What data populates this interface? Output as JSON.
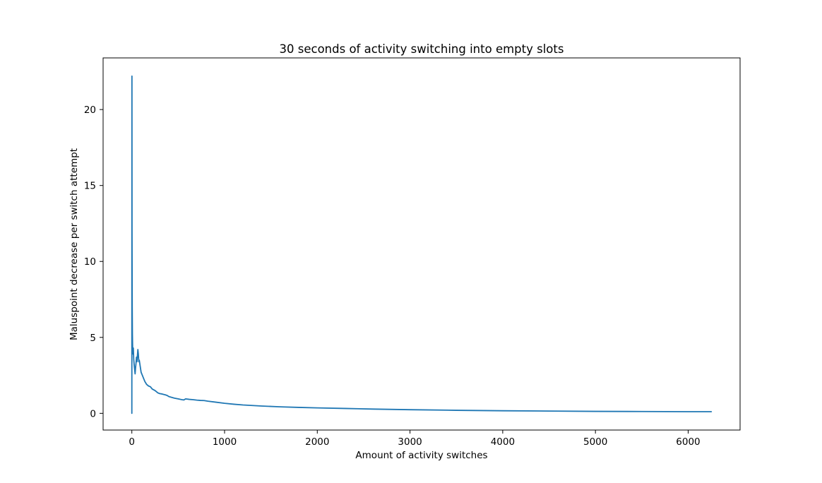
{
  "chart_data": {
    "type": "line",
    "title": "30 seconds of activity switching into empty slots",
    "xlabel": "Amount of activity switches",
    "ylabel": "Maluspoint decrease per switch attempt",
    "xlim": [
      -310,
      6560
    ],
    "ylim": [
      -1.1,
      23.4
    ],
    "xticks": [
      0,
      1000,
      2000,
      3000,
      4000,
      5000,
      6000
    ],
    "xtick_labels": [
      "0",
      "1000",
      "2000",
      "3000",
      "4000",
      "5000",
      "6000"
    ],
    "yticks": [
      0,
      5,
      10,
      15,
      20
    ],
    "ytick_labels": [
      "0",
      "5",
      "10",
      "15",
      "20"
    ],
    "grid": false,
    "colors": {
      "series": "#1f77b4"
    },
    "series": [
      {
        "x": [
          0,
          1,
          2,
          4,
          6,
          8,
          10,
          13,
          16,
          20,
          25,
          30,
          35,
          40,
          45,
          50,
          55,
          60,
          65,
          70,
          75,
          80,
          90,
          100,
          120,
          140,
          160,
          180,
          200,
          220,
          250,
          280,
          300,
          320,
          340,
          360,
          380,
          400,
          430,
          460,
          500,
          540,
          560,
          580,
          620,
          660,
          700,
          740,
          780,
          820,
          900,
          1000,
          1100,
          1200,
          1400,
          1600,
          1800,
          2000,
          2300,
          2600,
          3000,
          3500,
          4000,
          4500,
          5000,
          5500,
          6000,
          6250
        ],
        "y": [
          0,
          22.2,
          12,
          7,
          5.2,
          4.5,
          4.0,
          3.9,
          4.3,
          3.6,
          3.2,
          2.9,
          2.6,
          3.0,
          3.3,
          3.7,
          3.4,
          3.8,
          4.2,
          3.9,
          3.4,
          3.5,
          3.1,
          2.7,
          2.4,
          2.1,
          1.9,
          1.8,
          1.75,
          1.6,
          1.5,
          1.35,
          1.3,
          1.28,
          1.25,
          1.22,
          1.18,
          1.1,
          1.05,
          1.0,
          0.95,
          0.9,
          0.88,
          0.95,
          0.92,
          0.9,
          0.87,
          0.85,
          0.84,
          0.8,
          0.74,
          0.66,
          0.6,
          0.55,
          0.48,
          0.43,
          0.39,
          0.36,
          0.32,
          0.28,
          0.24,
          0.2,
          0.17,
          0.15,
          0.13,
          0.12,
          0.11,
          0.11
        ]
      }
    ]
  }
}
